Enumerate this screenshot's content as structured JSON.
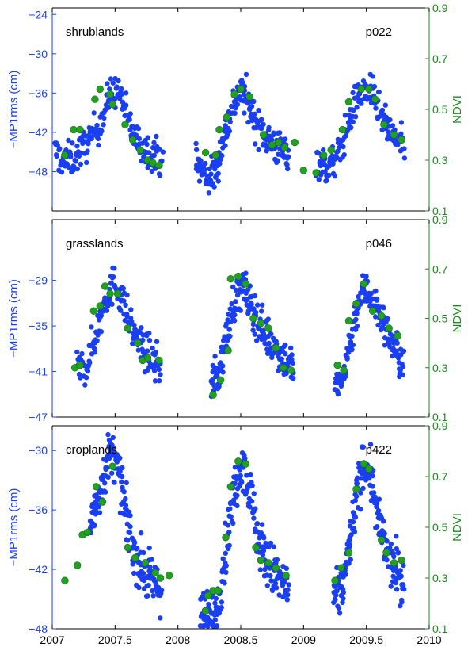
{
  "chart_data": [
    {
      "type": "scatter",
      "label_left": "shrublands",
      "label_right": "p022",
      "ylabel_left": "−MP1rms (cm)",
      "ylabel_right": "NDVI",
      "xlim": [
        2007,
        2010
      ],
      "ylim_left": [
        -54,
        -23
      ],
      "yticks_left": [
        -48,
        -42,
        -36,
        -30,
        -24
      ],
      "ytick_labels_left": [
        "−48",
        "−42",
        "−36",
        "−30",
        "−24"
      ],
      "ylim_right": [
        0.1,
        0.9
      ],
      "yticks_right": [
        0.1,
        0.3,
        0.5,
        0.7,
        0.9
      ],
      "ytick_labels_right": [
        "0.1",
        "0.3",
        "0.5",
        "0.7",
        "0.9"
      ],
      "series": [
        {
          "color": "#1a3ff0",
          "axis": "left",
          "anchors": [
            [
              2007.02,
              -45
            ],
            [
              2007.1,
              -46.5
            ],
            [
              2007.2,
              -45.5
            ],
            [
              2007.3,
              -43
            ],
            [
              2007.4,
              -40
            ],
            [
              2007.45,
              -36.5
            ],
            [
              2007.5,
              -35.5
            ],
            [
              2007.55,
              -36.5
            ],
            [
              2007.6,
              -40
            ],
            [
              2007.65,
              -42.5
            ],
            [
              2007.7,
              -44
            ],
            [
              2007.8,
              -45
            ],
            [
              2007.88,
              -46
            ]
          ],
          "count": 180,
          "spread": 1.3,
          "xrange": [
            2007.02,
            2007.88
          ]
        },
        {
          "color": "#1a3ff0",
          "axis": "left",
          "anchors": [
            [
              2008.14,
              -46.5
            ],
            [
              2008.2,
              -48
            ],
            [
              2008.25,
              -49
            ],
            [
              2008.3,
              -48
            ],
            [
              2008.35,
              -44
            ],
            [
              2008.42,
              -39
            ],
            [
              2008.48,
              -36
            ],
            [
              2008.52,
              -36
            ],
            [
              2008.56,
              -37.5
            ],
            [
              2008.62,
              -40.5
            ],
            [
              2008.7,
              -42.5
            ],
            [
              2008.8,
              -44.5
            ],
            [
              2008.88,
              -45.5
            ]
          ],
          "count": 200,
          "spread": 1.4,
          "xrange": [
            2008.14,
            2008.88
          ]
        },
        {
          "color": "#1a3ff0",
          "axis": "left",
          "anchors": [
            [
              2009.1,
              -46
            ],
            [
              2009.18,
              -47.5
            ],
            [
              2009.25,
              -46.5
            ],
            [
              2009.32,
              -43
            ],
            [
              2009.4,
              -38
            ],
            [
              2009.45,
              -36
            ],
            [
              2009.52,
              -35.5
            ],
            [
              2009.58,
              -37.5
            ],
            [
              2009.65,
              -41
            ],
            [
              2009.72,
              -43
            ],
            [
              2009.8,
              -44
            ]
          ],
          "count": 170,
          "spread": 1.3,
          "xrange": [
            2009.1,
            2009.8
          ]
        },
        {
          "color": "#22a022",
          "axis": "right",
          "points": [
            [
              2007.1,
              0.32
            ],
            [
              2007.17,
              0.42
            ],
            [
              2007.22,
              0.42
            ],
            [
              2007.34,
              0.54
            ],
            [
              2007.38,
              0.58
            ],
            [
              2007.46,
              0.56
            ],
            [
              2007.48,
              0.52
            ],
            [
              2007.58,
              0.44
            ],
            [
              2007.64,
              0.38
            ],
            [
              2007.7,
              0.34
            ],
            [
              2007.76,
              0.3
            ],
            [
              2007.8,
              0.29
            ],
            [
              2007.85,
              0.28
            ],
            [
              2008.22,
              0.33
            ],
            [
              2008.3,
              0.32
            ],
            [
              2008.33,
              0.42
            ],
            [
              2008.39,
              0.47
            ],
            [
              2008.45,
              0.56
            ],
            [
              2008.5,
              0.58
            ],
            [
              2008.57,
              0.55
            ],
            [
              2008.68,
              0.4
            ],
            [
              2008.75,
              0.36
            ],
            [
              2008.8,
              0.37
            ],
            [
              2008.85,
              0.35
            ],
            [
              2008.93,
              0.37
            ],
            [
              2009.0,
              0.26
            ],
            [
              2009.1,
              0.25
            ],
            [
              2009.16,
              0.32
            ],
            [
              2009.22,
              0.34
            ],
            [
              2009.31,
              0.42
            ],
            [
              2009.36,
              0.53
            ],
            [
              2009.46,
              0.58
            ],
            [
              2009.52,
              0.58
            ],
            [
              2009.57,
              0.54
            ],
            [
              2009.64,
              0.44
            ],
            [
              2009.72,
              0.4
            ],
            [
              2009.78,
              0.38
            ]
          ]
        }
      ]
    },
    {
      "type": "scatter",
      "label_left": "grasslands",
      "label_right": "p046",
      "ylabel_left": "−MP1rms (cm)",
      "ylabel_right": "NDVI",
      "xlim": [
        2007,
        2010
      ],
      "ylim_left": [
        -47,
        -21
      ],
      "yticks_left": [
        -47,
        -41,
        -35,
        -29
      ],
      "ytick_labels_left": [
        "−47",
        "−41",
        "−35",
        "−29"
      ],
      "ylim_right": [
        0.1,
        0.9
      ],
      "yticks_right": [
        0.1,
        0.3,
        0.5,
        0.7,
        0.9
      ],
      "ytick_labels_right": [
        "0.1",
        "0.3",
        "0.5",
        "0.7",
        "0.9"
      ],
      "series": [
        {
          "color": "#1a3ff0",
          "axis": "left",
          "anchors": [
            [
              2007.2,
              -41
            ],
            [
              2007.28,
              -40
            ],
            [
              2007.35,
              -36
            ],
            [
              2007.42,
              -31.5
            ],
            [
              2007.5,
              -29.2
            ],
            [
              2007.56,
              -31.5
            ],
            [
              2007.62,
              -35
            ],
            [
              2007.7,
              -37.5
            ],
            [
              2007.8,
              -39.5
            ],
            [
              2007.86,
              -40.5
            ]
          ],
          "count": 170,
          "spread": 1.2,
          "xrange": [
            2007.2,
            2007.86
          ]
        },
        {
          "color": "#1a3ff0",
          "axis": "left",
          "anchors": [
            [
              2008.26,
              -42.5
            ],
            [
              2008.32,
              -41.5
            ],
            [
              2008.38,
              -37
            ],
            [
              2008.44,
              -32
            ],
            [
              2008.52,
              -30
            ],
            [
              2008.6,
              -33
            ],
            [
              2008.68,
              -35.5
            ],
            [
              2008.76,
              -37.5
            ],
            [
              2008.86,
              -39.5
            ],
            [
              2008.92,
              -40.5
            ]
          ],
          "count": 190,
          "spread": 1.3,
          "xrange": [
            2008.26,
            2008.92
          ]
        },
        {
          "color": "#1a3ff0",
          "axis": "left",
          "anchors": [
            [
              2009.25,
              -43.5
            ],
            [
              2009.3,
              -42.5
            ],
            [
              2009.38,
              -36.5
            ],
            [
              2009.44,
              -31.5
            ],
            [
              2009.5,
              -30
            ],
            [
              2009.58,
              -32.5
            ],
            [
              2009.66,
              -35.5
            ],
            [
              2009.74,
              -38.5
            ],
            [
              2009.8,
              -40.5
            ]
          ],
          "count": 160,
          "spread": 1.2,
          "xrange": [
            2009.25,
            2009.8
          ]
        },
        {
          "color": "#22a022",
          "axis": "right",
          "points": [
            [
              2007.18,
              0.3
            ],
            [
              2007.22,
              0.31
            ],
            [
              2007.33,
              0.53
            ],
            [
              2007.38,
              0.55
            ],
            [
              2007.42,
              0.63
            ],
            [
              2007.46,
              0.6
            ],
            [
              2007.52,
              0.6
            ],
            [
              2007.6,
              0.46
            ],
            [
              2007.68,
              0.4
            ],
            [
              2007.72,
              0.33
            ],
            [
              2007.76,
              0.34
            ],
            [
              2007.85,
              0.33
            ],
            [
              2008.28,
              0.19
            ],
            [
              2008.34,
              0.25
            ],
            [
              2008.4,
              0.37
            ],
            [
              2008.42,
              0.66
            ],
            [
              2008.48,
              0.67
            ],
            [
              2008.54,
              0.64
            ],
            [
              2008.6,
              0.5
            ],
            [
              2008.66,
              0.48
            ],
            [
              2008.72,
              0.46
            ],
            [
              2008.78,
              0.38
            ],
            [
              2008.84,
              0.3
            ],
            [
              2008.9,
              0.29
            ],
            [
              2009.27,
              0.31
            ],
            [
              2009.32,
              0.29
            ],
            [
              2009.36,
              0.49
            ],
            [
              2009.42,
              0.56
            ],
            [
              2009.48,
              0.64
            ],
            [
              2009.55,
              0.53
            ],
            [
              2009.62,
              0.51
            ],
            [
              2009.68,
              0.46
            ],
            [
              2009.75,
              0.43
            ]
          ]
        }
      ]
    },
    {
      "type": "scatter",
      "label_left": "croplands",
      "label_right": "p422",
      "ylabel_left": "−MP1rms (cm)",
      "ylabel_right": "NDVI",
      "xlim": [
        2007,
        2010
      ],
      "ylim_left": [
        -48,
        -27.5
      ],
      "yticks_left": [
        -48,
        -42,
        -36,
        -30
      ],
      "ytick_labels_left": [
        "−48",
        "−42",
        "−36",
        "−30"
      ],
      "ylim_right": [
        0.1,
        0.9
      ],
      "yticks_right": [
        0.1,
        0.3,
        0.5,
        0.7,
        0.9
      ],
      "ytick_labels_right": [
        "0.1",
        "0.3",
        "0.5",
        "0.7",
        "0.9"
      ],
      "series": [
        {
          "color": "#1a3ff0",
          "axis": "left",
          "anchors": [
            [
              2007.3,
              -38
            ],
            [
              2007.38,
              -34
            ],
            [
              2007.44,
              -31
            ],
            [
              2007.48,
              -30.2
            ],
            [
              2007.54,
              -33
            ],
            [
              2007.6,
              -37.5
            ],
            [
              2007.66,
              -40.5
            ],
            [
              2007.74,
              -42.5
            ],
            [
              2007.82,
              -43.5
            ],
            [
              2007.87,
              -44
            ]
          ],
          "count": 190,
          "spread": 1.2,
          "xrange": [
            2007.3,
            2007.87
          ]
        },
        {
          "color": "#1a3ff0",
          "axis": "left",
          "anchors": [
            [
              2008.18,
              -46.5
            ],
            [
              2008.24,
              -47
            ],
            [
              2008.3,
              -46.5
            ],
            [
              2008.36,
              -42
            ],
            [
              2008.42,
              -36.5
            ],
            [
              2008.48,
              -32
            ],
            [
              2008.52,
              -31
            ],
            [
              2008.58,
              -34.5
            ],
            [
              2008.64,
              -39
            ],
            [
              2008.72,
              -41.5
            ],
            [
              2008.8,
              -43
            ],
            [
              2008.88,
              -44
            ]
          ],
          "count": 220,
          "spread": 1.3,
          "xrange": [
            2008.18,
            2008.88
          ]
        },
        {
          "color": "#1a3ff0",
          "axis": "left",
          "anchors": [
            [
              2009.24,
              -45
            ],
            [
              2009.3,
              -44.5
            ],
            [
              2009.36,
              -40
            ],
            [
              2009.42,
              -35
            ],
            [
              2009.48,
              -31
            ],
            [
              2009.54,
              -33
            ],
            [
              2009.6,
              -37.5
            ],
            [
              2009.68,
              -41
            ],
            [
              2009.76,
              -42.5
            ],
            [
              2009.8,
              -43.5
            ]
          ],
          "count": 190,
          "spread": 1.2,
          "xrange": [
            2009.24,
            2009.8
          ]
        },
        {
          "color": "#22a022",
          "axis": "right",
          "points": [
            [
              2007.1,
              0.29
            ],
            [
              2007.2,
              0.35
            ],
            [
              2007.24,
              0.47
            ],
            [
              2007.28,
              0.48
            ],
            [
              2007.35,
              0.66
            ],
            [
              2007.4,
              0.6
            ],
            [
              2007.48,
              0.74
            ],
            [
              2007.6,
              0.42
            ],
            [
              2007.66,
              0.38
            ],
            [
              2007.74,
              0.36
            ],
            [
              2007.82,
              0.32
            ],
            [
              2007.86,
              0.3
            ],
            [
              2007.93,
              0.31
            ],
            [
              2008.22,
              0.17
            ],
            [
              2008.24,
              0.23
            ],
            [
              2008.28,
              0.25
            ],
            [
              2008.32,
              0.25
            ],
            [
              2008.38,
              0.46
            ],
            [
              2008.42,
              0.66
            ],
            [
              2008.48,
              0.76
            ],
            [
              2008.54,
              0.75
            ],
            [
              2008.62,
              0.42
            ],
            [
              2008.66,
              0.37
            ],
            [
              2008.72,
              0.36
            ],
            [
              2008.78,
              0.34
            ],
            [
              2008.86,
              0.31
            ],
            [
              2009.25,
              0.29
            ],
            [
              2009.3,
              0.34
            ],
            [
              2009.36,
              0.4
            ],
            [
              2009.42,
              0.65
            ],
            [
              2009.48,
              0.75
            ],
            [
              2009.52,
              0.73
            ],
            [
              2009.62,
              0.45
            ],
            [
              2009.66,
              0.4
            ],
            [
              2009.72,
              0.36
            ],
            [
              2009.78,
              0.37
            ]
          ]
        }
      ]
    }
  ],
  "xaxis": {
    "ticks": [
      2007,
      2007.5,
      2008,
      2008.5,
      2009,
      2009.5,
      2010
    ],
    "tick_labels": [
      "2007",
      "2007.5",
      "2008",
      "2008.5",
      "2009",
      "2009.5",
      "2010"
    ]
  },
  "colors": {
    "gps": "#1a3ff0",
    "ndvi": "#22a022",
    "left_axis": "#1a3ff0",
    "right_axis": "#1a8c1a"
  }
}
